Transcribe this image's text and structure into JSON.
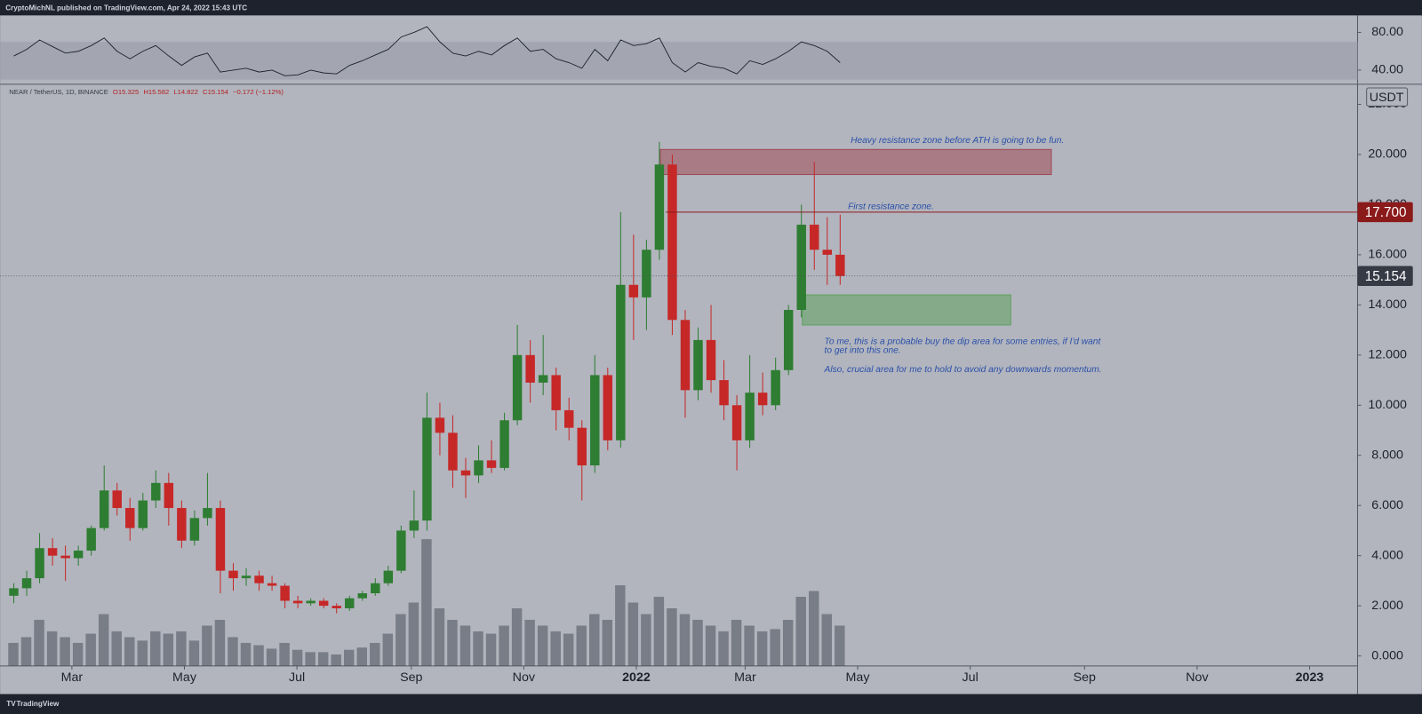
{
  "header": {
    "publisher": "CryptoMichNL published on TradingView.com, Apr 24, 2022 15:43 UTC",
    "brand": "TradingView"
  },
  "chart_data": [
    {
      "type": "line",
      "name": "RSI",
      "x": [
        "2021-01-25",
        "2021-02-01",
        "2021-02-08",
        "2021-02-15",
        "2021-02-22",
        "2021-03-01",
        "2021-03-08",
        "2021-03-15",
        "2021-03-22",
        "2021-03-29",
        "2021-04-05",
        "2021-04-12",
        "2021-04-19",
        "2021-04-26",
        "2021-05-03",
        "2021-05-10",
        "2021-05-17",
        "2021-05-24",
        "2021-05-31",
        "2021-06-07",
        "2021-06-14",
        "2021-06-21",
        "2021-06-28",
        "2021-07-05",
        "2021-07-12",
        "2021-07-19",
        "2021-07-26",
        "2021-08-02",
        "2021-08-09",
        "2021-08-16",
        "2021-08-23",
        "2021-08-30",
        "2021-09-06",
        "2021-09-13",
        "2021-09-20",
        "2021-09-27",
        "2021-10-04",
        "2021-10-11",
        "2021-10-18",
        "2021-10-25",
        "2021-11-01",
        "2021-11-08",
        "2021-11-15",
        "2021-11-22",
        "2021-11-29",
        "2021-12-06",
        "2021-12-13",
        "2021-12-20",
        "2021-12-27",
        "2022-01-03",
        "2022-01-10",
        "2022-01-17",
        "2022-01-24",
        "2022-01-31",
        "2022-02-07",
        "2022-02-14",
        "2022-02-21",
        "2022-02-28",
        "2022-03-07",
        "2022-03-14",
        "2022-03-21",
        "2022-03-28",
        "2022-04-04",
        "2022-04-11",
        "2022-04-18"
      ],
      "values": [
        55,
        62,
        72,
        65,
        58,
        60,
        66,
        74,
        60,
        52,
        60,
        66,
        55,
        45,
        54,
        58,
        38,
        40,
        42,
        38,
        40,
        34,
        35,
        40,
        37,
        36,
        45,
        50,
        56,
        62,
        75,
        80,
        86,
        70,
        58,
        55,
        60,
        56,
        66,
        74,
        60,
        62,
        52,
        48,
        42,
        62,
        50,
        72,
        66,
        68,
        74,
        48,
        38,
        48,
        44,
        42,
        36,
        50,
        46,
        52,
        60,
        70,
        66,
        60,
        48
      ],
      "color": "#1e222d",
      "band": [
        30,
        70
      ],
      "xlim": [
        "2021-01-25",
        "2023-01-27"
      ],
      "ylim": [
        25,
        98
      ],
      "yticks": [
        {
          "value": 40,
          "label": "40.00"
        },
        {
          "value": 80,
          "label": "80.00"
        }
      ]
    },
    {
      "type": "candlestick",
      "currency": "USDT",
      "legend": {
        "symbol": "NEAR / TetherUS, 1D, BINANCE",
        "values": [
          "O15.325",
          "H15.582",
          "L14.822",
          "C15.154",
          "−0.172 (−1.12%)"
        ]
      },
      "x": [
        "2021-01-25",
        "2021-02-01",
        "2021-02-08",
        "2021-02-15",
        "2021-02-22",
        "2021-03-01",
        "2021-03-08",
        "2021-03-15",
        "2021-03-22",
        "2021-03-29",
        "2021-04-05",
        "2021-04-12",
        "2021-04-19",
        "2021-04-26",
        "2021-05-03",
        "2021-05-10",
        "2021-05-17",
        "2021-05-24",
        "2021-05-31",
        "2021-06-07",
        "2021-06-14",
        "2021-06-21",
        "2021-06-28",
        "2021-07-05",
        "2021-07-12",
        "2021-07-19",
        "2021-07-26",
        "2021-08-02",
        "2021-08-09",
        "2021-08-16",
        "2021-08-23",
        "2021-08-30",
        "2021-09-06",
        "2021-09-13",
        "2021-09-20",
        "2021-09-27",
        "2021-10-04",
        "2021-10-11",
        "2021-10-18",
        "2021-10-25",
        "2021-11-01",
        "2021-11-08",
        "2021-11-15",
        "2021-11-22",
        "2021-11-29",
        "2021-12-06",
        "2021-12-13",
        "2021-12-20",
        "2021-12-27",
        "2022-01-03",
        "2022-01-10",
        "2022-01-17",
        "2022-01-24",
        "2022-01-31",
        "2022-02-07",
        "2022-02-14",
        "2022-02-21",
        "2022-02-28",
        "2022-03-07",
        "2022-03-14",
        "2022-03-21",
        "2022-03-28",
        "2022-04-04",
        "2022-04-11",
        "2022-04-18"
      ],
      "open": [
        2.4,
        2.7,
        3.1,
        4.3,
        4.0,
        3.9,
        4.2,
        5.1,
        6.6,
        5.9,
        5.1,
        6.2,
        6.9,
        5.9,
        4.6,
        5.5,
        5.9,
        3.4,
        3.1,
        3.2,
        2.9,
        2.8,
        2.2,
        2.1,
        2.2,
        2.0,
        1.9,
        2.3,
        2.5,
        2.9,
        3.4,
        5.0,
        5.4,
        9.5,
        8.9,
        7.4,
        7.2,
        7.8,
        7.5,
        9.4,
        12.0,
        10.9,
        11.2,
        9.8,
        9.1,
        7.6,
        11.2,
        8.6,
        14.8,
        14.3,
        16.2,
        19.6,
        13.4,
        10.6,
        12.6,
        11.0,
        10.0,
        8.6,
        10.5,
        10.0,
        11.4,
        13.8,
        17.2,
        16.2,
        16.0
      ],
      "high": [
        2.9,
        3.4,
        4.9,
        4.7,
        4.4,
        4.4,
        5.2,
        7.6,
        6.9,
        6.3,
        6.5,
        7.4,
        7.3,
        6.2,
        5.8,
        7.3,
        6.2,
        3.7,
        3.5,
        3.4,
        3.2,
        2.9,
        2.4,
        2.3,
        2.3,
        2.1,
        2.4,
        2.6,
        3.1,
        3.6,
        5.2,
        6.6,
        10.5,
        10.1,
        9.6,
        7.9,
        8.4,
        8.6,
        9.7,
        13.2,
        12.6,
        12.8,
        11.5,
        10.3,
        9.4,
        12.0,
        11.5,
        17.7,
        16.8,
        16.6,
        20.5,
        20.0,
        13.8,
        13.1,
        14.0,
        11.8,
        10.4,
        12.0,
        11.3,
        11.9,
        14.0,
        18.0,
        19.7,
        17.5,
        17.6
      ],
      "low": [
        2.1,
        2.4,
        2.9,
        3.6,
        3.0,
        3.6,
        4.0,
        5.0,
        5.6,
        4.6,
        5.0,
        5.9,
        5.2,
        4.3,
        4.4,
        5.2,
        2.5,
        2.6,
        2.8,
        2.6,
        2.6,
        1.9,
        1.9,
        2.0,
        1.9,
        1.7,
        1.8,
        2.2,
        2.4,
        2.8,
        3.3,
        4.7,
        5.0,
        8.0,
        6.7,
        6.3,
        6.9,
        7.3,
        7.4,
        9.2,
        10.1,
        10.4,
        9.0,
        8.6,
        6.2,
        7.3,
        8.2,
        8.3,
        12.6,
        13.0,
        15.8,
        12.8,
        9.5,
        10.2,
        10.5,
        9.4,
        7.4,
        8.3,
        9.6,
        9.8,
        11.2,
        13.5,
        15.4,
        14.8,
        14.8
      ],
      "close": [
        2.7,
        3.1,
        4.3,
        4.0,
        3.9,
        4.2,
        5.1,
        6.6,
        5.9,
        5.1,
        6.2,
        6.9,
        5.9,
        4.6,
        5.5,
        5.9,
        3.4,
        3.1,
        3.2,
        2.9,
        2.8,
        2.2,
        2.1,
        2.2,
        2.0,
        1.9,
        2.3,
        2.5,
        2.9,
        3.4,
        5.0,
        5.4,
        9.5,
        8.9,
        7.4,
        7.2,
        7.8,
        7.5,
        9.4,
        12.0,
        10.9,
        11.2,
        9.8,
        9.1,
        7.6,
        11.2,
        8.6,
        14.8,
        14.3,
        16.2,
        19.6,
        13.4,
        10.6,
        12.6,
        11.0,
        10.0,
        8.6,
        10.5,
        10.0,
        11.4,
        13.8,
        17.2,
        16.2,
        16.0,
        15.154
      ],
      "volume": [
        20,
        25,
        40,
        30,
        25,
        20,
        28,
        45,
        30,
        25,
        22,
        30,
        28,
        30,
        22,
        35,
        40,
        25,
        20,
        18,
        15,
        20,
        14,
        12,
        12,
        10,
        14,
        16,
        20,
        28,
        45,
        55,
        110,
        50,
        40,
        35,
        30,
        28,
        35,
        50,
        40,
        35,
        30,
        28,
        35,
        45,
        40,
        70,
        55,
        45,
        60,
        50,
        45,
        40,
        35,
        30,
        40,
        35,
        30,
        32,
        40,
        60,
        65,
        45,
        35
      ],
      "up_color": "#2e7d32",
      "down_color": "#c62828",
      "volume_color": "#4a4e5a",
      "xlim": [
        "2021-01-25",
        "2023-01-27"
      ],
      "ylim": [
        -0.4,
        22.8
      ],
      "yticks": [
        {
          "value": 0,
          "label": "0.000"
        },
        {
          "value": 2,
          "label": "2.000"
        },
        {
          "value": 4,
          "label": "4.000"
        },
        {
          "value": 6,
          "label": "6.000"
        },
        {
          "value": 8,
          "label": "8.000"
        },
        {
          "value": 10,
          "label": "10.000"
        },
        {
          "value": 12,
          "label": "12.000"
        },
        {
          "value": 14,
          "label": "14.000"
        },
        {
          "value": 16,
          "label": "16.000"
        },
        {
          "value": 18,
          "label": "18.000"
        },
        {
          "value": 20,
          "label": "20.000"
        },
        {
          "value": 22,
          "label": "22.000"
        }
      ],
      "xticks": [
        {
          "value": "2021-03-01",
          "label": "Mar"
        },
        {
          "value": "2021-05-01",
          "label": "May"
        },
        {
          "value": "2021-07-01",
          "label": "Jul"
        },
        {
          "value": "2021-09-01",
          "label": "Sep"
        },
        {
          "value": "2021-11-01",
          "label": "Nov"
        },
        {
          "value": "2022-01-01",
          "label": "2022"
        },
        {
          "value": "2022-03-01",
          "label": "Mar"
        },
        {
          "value": "2022-05-01",
          "label": "May"
        },
        {
          "value": "2022-07-01",
          "label": "Jul"
        },
        {
          "value": "2022-09-01",
          "label": "Sep"
        },
        {
          "value": "2022-11-01",
          "label": "Nov"
        },
        {
          "value": "2023-01-01",
          "label": "2023"
        }
      ],
      "price_labels": [
        {
          "value": 17.7,
          "label": "17.700",
          "color": "#8b1a1a"
        },
        {
          "value": 15.154,
          "label": "15.154",
          "color": "#363a45"
        }
      ],
      "resistance_line": {
        "x0": "2022-01-17",
        "color": "#8b1a1a"
      },
      "zones": [
        {
          "x": [
            "2022-01-14",
            "2022-08-14"
          ],
          "y": [
            19.2,
            20.2
          ],
          "color": "#a04a55"
        },
        {
          "x": [
            "2022-04-01",
            "2022-07-23"
          ],
          "y": [
            13.2,
            14.4
          ],
          "color": "#5fa05f"
        }
      ],
      "annotations": [
        "Heavy resistance zone before ATH is going to be fun.",
        "First resistance zone.",
        "To me, this is a probable buy the dip area for some entries, if I'd want",
        "to get into this one.",
        "Also, crucial area for me to hold to avoid any downwards momentum."
      ]
    }
  ]
}
